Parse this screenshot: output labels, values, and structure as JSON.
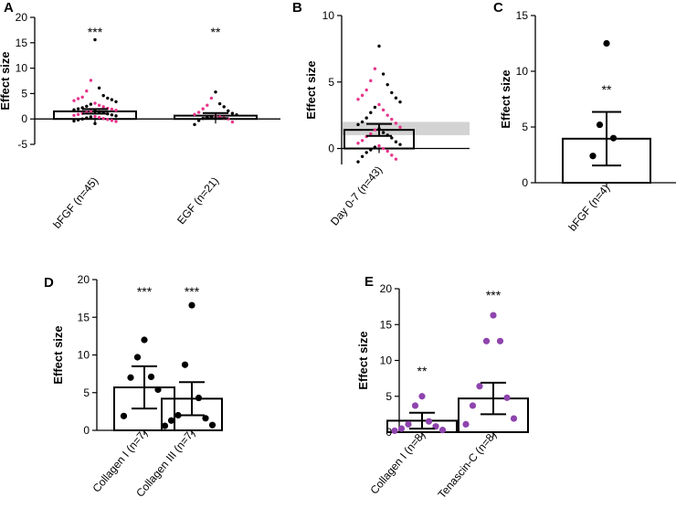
{
  "chart_data": [
    {
      "id": "A",
      "panel_label": "A",
      "type": "bar",
      "ylabel": "Effect size",
      "ylim": [
        -5,
        20
      ],
      "yticks": [
        -5,
        0,
        5,
        10,
        15,
        20
      ],
      "categories": [
        "bFGF (n=45)",
        "EGF (n=21)"
      ],
      "values": [
        1.5,
        0.65
      ],
      "sem": [
        0.45,
        0.5
      ],
      "significance": [
        "***",
        "**"
      ],
      "points": [
        [
          15.6,
          7.6,
          6.1,
          5.5,
          4.6,
          4.3,
          4.1,
          4.0,
          3.8,
          3.6,
          3.4,
          3.1,
          2.9,
          2.7,
          2.5,
          2.4,
          2.2,
          2.1,
          2.0,
          1.9,
          1.8,
          1.7,
          1.6,
          1.5,
          1.4,
          1.3,
          1.2,
          1.1,
          1.0,
          0.9,
          0.8,
          0.7,
          0.6,
          0.5,
          0.4,
          0.3,
          0.2,
          0.1,
          0.0,
          -0.1,
          -0.2,
          -0.3,
          -0.4,
          -0.5,
          -0.9
        ],
        [
          5.3,
          4.1,
          3.0,
          2.7,
          2.4,
          2.0,
          1.6,
          1.3,
          1.1,
          0.9,
          0.8,
          0.6,
          0.5,
          0.4,
          0.3,
          0.2,
          0.1,
          0.0,
          -0.3,
          -0.6,
          -1.1
        ]
      ]
    },
    {
      "id": "B",
      "panel_label": "B",
      "type": "bar",
      "ylabel": "Effect size",
      "ylim": [
        -1.2,
        10
      ],
      "yticks": [
        0,
        5,
        10
      ],
      "categories": [
        "Day 0-7 (n=43)"
      ],
      "values": [
        1.4
      ],
      "sem": [
        0.45
      ],
      "shaded_band": [
        1.0,
        2.0
      ],
      "significance": [
        ""
      ],
      "points": [
        [
          7.7,
          6.0,
          5.6,
          5.1,
          4.8,
          4.4,
          4.2,
          4.0,
          3.8,
          3.7,
          3.5,
          3.3,
          3.1,
          2.9,
          2.7,
          2.5,
          2.3,
          2.2,
          2.0,
          1.9,
          1.8,
          1.6,
          1.5,
          1.4,
          1.2,
          1.1,
          1.0,
          0.9,
          0.8,
          0.6,
          0.5,
          0.4,
          0.3,
          0.2,
          0.1,
          0.0,
          -0.1,
          -0.2,
          -0.3,
          -0.5,
          -0.6,
          -0.8,
          -1.0
        ]
      ]
    },
    {
      "id": "C",
      "panel_label": "C",
      "type": "bar",
      "ylabel": "Effect size",
      "ylim": [
        0,
        15
      ],
      "yticks": [
        0,
        5,
        10,
        15
      ],
      "categories": [
        "bFGF (n=4)"
      ],
      "values": [
        3.95
      ],
      "sem": [
        2.4
      ],
      "error_low": [
        1.55
      ],
      "significance": [
        "**"
      ],
      "points": [
        [
          12.5,
          5.2,
          4.0,
          2.4
        ]
      ]
    },
    {
      "id": "D",
      "panel_label": "D",
      "type": "bar",
      "ylabel": "Effect size",
      "ylim": [
        0,
        20
      ],
      "yticks": [
        0,
        5,
        10,
        15,
        20
      ],
      "categories": [
        "Collagen I (n=7)",
        "Collagen III (n=7)"
      ],
      "values": [
        5.7,
        4.2
      ],
      "sem": [
        2.8,
        2.2
      ],
      "significance": [
        "***",
        "***"
      ],
      "points": [
        [
          12.0,
          9.7,
          7.1,
          7.0,
          5.4,
          1.9,
          0.6
        ],
        [
          16.6,
          8.7,
          4.3,
          2.0,
          1.6,
          1.3,
          0.7
        ]
      ]
    },
    {
      "id": "E",
      "panel_label": "E",
      "type": "bar",
      "ylabel": "Effect size",
      "ylim": [
        0,
        20
      ],
      "yticks": [
        0,
        5,
        10,
        15,
        20
      ],
      "categories": [
        "Collagen I (n=8)",
        "Tenascin-C (n=8)"
      ],
      "values": [
        1.6,
        4.7
      ],
      "sem": [
        1.1,
        2.2
      ],
      "significance": [
        "**",
        "***"
      ],
      "points": [
        [
          5.0,
          3.7,
          1.5,
          1.1,
          0.8,
          0.5,
          0.3,
          0.2
        ],
        [
          16.3,
          12.7,
          12.7,
          6.4,
          4.8,
          3.7,
          1.9,
          1.1
        ]
      ]
    }
  ],
  "colors": {
    "black": "#000000",
    "pink": "#e7348a",
    "purple": "#8e44ad",
    "band": "#d3d3d3"
  }
}
